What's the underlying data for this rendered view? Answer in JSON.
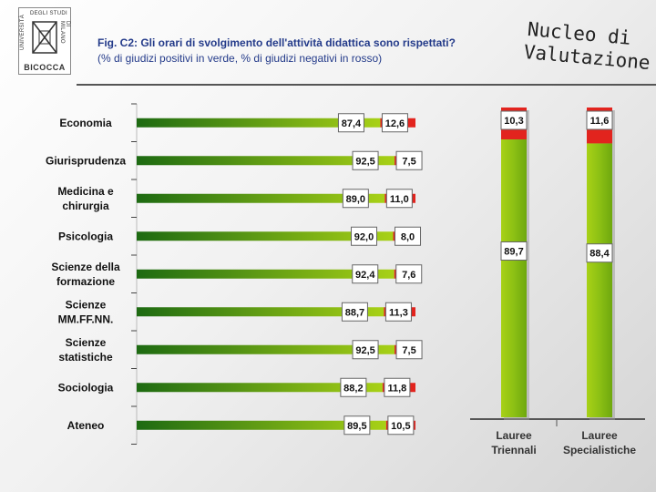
{
  "header": {
    "title": "Fig. C2: Gli orari di svolgimento dell'attività didattica sono rispettati?",
    "subtitle": "(% di giudizi positivi in verde, % di giudizi negativi in rosso)",
    "brand_line1": "Nucleo di",
    "brand_line2": "Valutazione"
  },
  "logo": {
    "text_top": "DEGLI STUDI",
    "text_left": "UNIVERSITÀ",
    "text_right": "DI MILANO",
    "wordmark": "BICOCCA"
  },
  "colors": {
    "positive_dark": "#1d6a12",
    "positive_light": "#a8d116",
    "negative": "#e2241e"
  },
  "chart_data": [
    {
      "type": "bar",
      "orientation": "horizontal",
      "stacked": true,
      "categories": [
        "Economia",
        "Giurisprudenza",
        "Medicina e chirurgia",
        "Psicologia",
        "Scienze della formazione",
        "Scienze MM.FF.NN.",
        "Scienze statistiche",
        "Sociologia",
        "Ateneo"
      ],
      "category_lines": [
        [
          "Economia"
        ],
        [
          "Giurisprudenza"
        ],
        [
          "Medicina e",
          "chirurgia"
        ],
        [
          "Psicologia"
        ],
        [
          "Scienze della",
          "formazione"
        ],
        [
          "Scienze",
          "MM.FF.NN."
        ],
        [
          "Scienze",
          "statistiche"
        ],
        [
          "Sociologia"
        ],
        [
          "Ateneo"
        ]
      ],
      "series": [
        {
          "values": [
            87.4,
            92.5,
            89.0,
            92.0,
            92.4,
            88.7,
            92.5,
            88.2,
            89.5
          ],
          "labels": [
            "87,4",
            "92,5",
            "89,0",
            "92,0",
            "92,4",
            "88,7",
            "92,5",
            "88,2",
            "89,5"
          ],
          "color": "#3a8a1c"
        },
        {
          "values": [
            12.6,
            7.5,
            11.0,
            8.0,
            7.6,
            11.3,
            7.5,
            11.8,
            10.5
          ],
          "labels": [
            "12,6",
            "7,5",
            "11,0",
            "8,0",
            "7,6",
            "11,3",
            "7,5",
            "11,8",
            "10,5"
          ],
          "color": "#e2241e"
        }
      ],
      "xlim": [
        0,
        100
      ]
    },
    {
      "type": "bar",
      "orientation": "vertical",
      "stacked": true,
      "categories": [
        "Lauree Triennali",
        "Lauree Specialistiche"
      ],
      "category_lines": [
        [
          "Lauree",
          "Triennali"
        ],
        [
          "Lauree",
          "Specialistiche"
        ]
      ],
      "series": [
        {
          "values": [
            89.7,
            88.4
          ],
          "labels": [
            "89,7",
            "88,4"
          ],
          "color": "#8cc014"
        },
        {
          "values": [
            10.3,
            11.6
          ],
          "labels": [
            "10,3",
            "11,6"
          ],
          "color": "#e2241e"
        }
      ],
      "ylim": [
        0,
        100
      ]
    }
  ]
}
